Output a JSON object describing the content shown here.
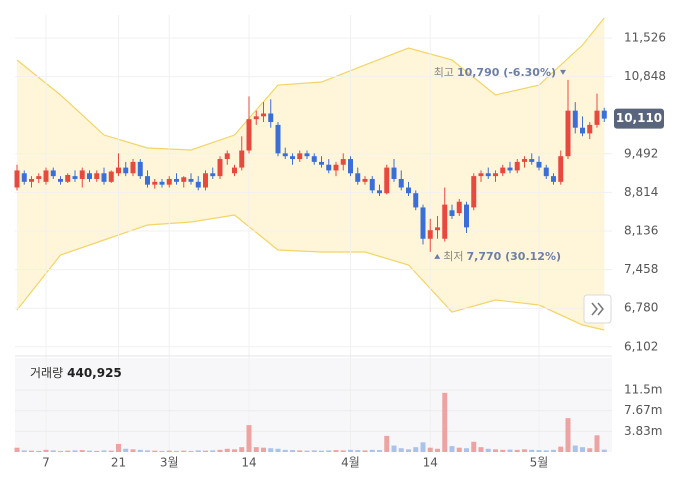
{
  "chart_data": {
    "type": "candlestick",
    "up_color": "#e8493f",
    "down_color": "#3a6fd8",
    "volume_up_color": "#eea3a3",
    "volume_down_color": "#a9c3ea",
    "band_fill": "#fff6d9",
    "band_color": "#f3d466",
    "ylim": [
      6046,
      11930
    ],
    "yticks": [
      {
        "value": 11526,
        "label": "11,526"
      },
      {
        "value": 10848,
        "label": "10,848"
      },
      {
        "value": 9492,
        "label": "9,492"
      },
      {
        "value": 8814,
        "label": "8,814"
      },
      {
        "value": 8136,
        "label": "8,136"
      },
      {
        "value": 7458,
        "label": "7,458"
      },
      {
        "value": 6780,
        "label": "6,780"
      },
      {
        "value": 6102,
        "label": "6,102"
      }
    ],
    "xticks": [
      {
        "value": 4,
        "label": "7"
      },
      {
        "value": 14,
        "label": "21"
      },
      {
        "value": 21,
        "label": "3월"
      },
      {
        "value": 32,
        "label": "14"
      },
      {
        "value": 46,
        "label": "4월"
      },
      {
        "value": 57,
        "label": "14"
      },
      {
        "value": 72,
        "label": "5월"
      }
    ],
    "candles": [
      [
        8900,
        9300,
        8850,
        9200
      ],
      [
        9150,
        9200,
        8950,
        9000
      ],
      [
        9000,
        9100,
        8900,
        9050
      ],
      [
        9050,
        9150,
        8980,
        9100
      ],
      [
        9000,
        9250,
        8950,
        9200
      ],
      [
        9200,
        9250,
        9050,
        9100
      ],
      [
        9050,
        9100,
        8950,
        9000
      ],
      [
        9000,
        9150,
        8980,
        9120
      ],
      [
        9100,
        9200,
        9000,
        9050
      ],
      [
        9050,
        9250,
        8900,
        9200
      ],
      [
        9150,
        9200,
        9000,
        9050
      ],
      [
        9050,
        9200,
        9000,
        9150
      ],
      [
        9150,
        9250,
        8950,
        9000
      ],
      [
        9000,
        9200,
        8980,
        9180
      ],
      [
        9150,
        9500,
        9100,
        9250
      ],
      [
        9250,
        9350,
        9100,
        9150
      ],
      [
        9150,
        9400,
        9100,
        9350
      ],
      [
        9350,
        9400,
        9050,
        9100
      ],
      [
        9100,
        9200,
        8900,
        8950
      ],
      [
        8950,
        9050,
        8880,
        9000
      ],
      [
        9000,
        9050,
        8900,
        8950
      ],
      [
        8950,
        9100,
        8900,
        9050
      ],
      [
        9050,
        9150,
        8950,
        9000
      ],
      [
        9000,
        9100,
        8900,
        9080
      ],
      [
        9050,
        9150,
        8950,
        9000
      ],
      [
        9000,
        9100,
        8850,
        8900
      ],
      [
        8900,
        9200,
        8850,
        9150
      ],
      [
        9150,
        9250,
        9050,
        9100
      ],
      [
        9100,
        9450,
        9050,
        9400
      ],
      [
        9400,
        9550,
        9300,
        9500
      ],
      [
        9150,
        9300,
        9100,
        9250
      ],
      [
        9250,
        9800,
        9200,
        9550
      ],
      [
        9550,
        10500,
        9500,
        10100
      ],
      [
        10100,
        10250,
        10000,
        10150
      ],
      [
        10150,
        10400,
        10050,
        10200
      ],
      [
        10200,
        10450,
        9950,
        10050
      ],
      [
        10000,
        10050,
        9450,
        9500
      ],
      [
        9500,
        9600,
        9400,
        9450
      ],
      [
        9450,
        9500,
        9300,
        9400
      ],
      [
        9400,
        9550,
        9350,
        9500
      ],
      [
        9500,
        9550,
        9400,
        9450
      ],
      [
        9450,
        9500,
        9300,
        9350
      ],
      [
        9350,
        9450,
        9250,
        9300
      ],
      [
        9300,
        9400,
        9150,
        9200
      ],
      [
        9200,
        9350,
        9100,
        9300
      ],
      [
        9300,
        9500,
        9200,
        9400
      ],
      [
        9400,
        9450,
        9100,
        9150
      ],
      [
        9150,
        9250,
        8950,
        9000
      ],
      [
        9000,
        9100,
        8950,
        9050
      ],
      [
        9050,
        9100,
        8800,
        8850
      ],
      [
        8850,
        8950,
        8750,
        8800
      ],
      [
        8800,
        9300,
        8780,
        9250
      ],
      [
        9250,
        9400,
        9000,
        9050
      ],
      [
        9050,
        9200,
        8850,
        8900
      ],
      [
        8900,
        9000,
        8750,
        8800
      ],
      [
        8800,
        8850,
        8500,
        8550
      ],
      [
        8550,
        8600,
        7900,
        8000
      ],
      [
        8000,
        8350,
        7770,
        8150
      ],
      [
        8150,
        8400,
        8000,
        8200
      ],
      [
        8000,
        8900,
        7950,
        8600
      ],
      [
        8500,
        8600,
        8350,
        8400
      ],
      [
        8450,
        8700,
        8400,
        8650
      ],
      [
        8600,
        8650,
        8100,
        8200
      ],
      [
        8550,
        9150,
        8500,
        9100
      ],
      [
        9100,
        9200,
        9000,
        9150
      ],
      [
        9150,
        9250,
        9050,
        9100
      ],
      [
        9100,
        9200,
        9000,
        9150
      ],
      [
        9150,
        9300,
        9100,
        9250
      ],
      [
        9250,
        9350,
        9150,
        9200
      ],
      [
        9200,
        9400,
        9150,
        9350
      ],
      [
        9350,
        9450,
        9250,
        9400
      ],
      [
        9400,
        9500,
        9300,
        9350
      ],
      [
        9350,
        9450,
        9200,
        9250
      ],
      [
        9250,
        9300,
        9050,
        9100
      ],
      [
        9100,
        9150,
        8950,
        9000
      ],
      [
        9000,
        9550,
        8950,
        9450
      ],
      [
        9450,
        10790,
        9400,
        10250
      ],
      [
        10250,
        10400,
        9850,
        9950
      ],
      [
        9950,
        10150,
        9800,
        9850
      ],
      [
        9850,
        10050,
        9750,
        10000
      ],
      [
        10000,
        10550,
        9950,
        10250
      ],
      [
        10250,
        10300,
        10050,
        10110
      ]
    ],
    "bands": {
      "x": [
        0,
        6,
        12,
        18,
        24,
        30,
        36,
        42,
        48,
        54,
        60,
        66,
        72,
        78,
        81
      ],
      "upper": [
        11140,
        10525,
        9822,
        9594,
        9559,
        9822,
        10700,
        10753,
        11052,
        11350,
        11140,
        10525,
        10700,
        11403,
        11877
      ],
      "lower": [
        6748,
        7714,
        7978,
        8241,
        8294,
        8417,
        7802,
        7767,
        7767,
        7539,
        6713,
        6924,
        6836,
        6485,
        6397
      ]
    },
    "last_price": {
      "value": 10110,
      "label": "10,110"
    },
    "high_annotation": {
      "label": "최고",
      "text": "10,790 (-6.30%)"
    },
    "low_annotation": {
      "label": "최저",
      "text": "7,770 (30.12%)"
    },
    "volume_title": "거래량",
    "volume_text": "440,925",
    "volume": [
      800000,
      300000,
      250000,
      200000,
      400000,
      300000,
      200000,
      250000,
      300000,
      350000,
      250000,
      200000,
      300000,
      250000,
      1500000,
      600000,
      500000,
      400000,
      300000,
      250000,
      200000,
      250000,
      200000,
      250000,
      200000,
      300000,
      250000,
      300000,
      400000,
      600000,
      500000,
      900000,
      5000000,
      900000,
      800000,
      700000,
      600000,
      400000,
      350000,
      300000,
      250000,
      300000,
      250000,
      300000,
      350000,
      300000,
      400000,
      350000,
      300000,
      400000,
      350000,
      3000000,
      1200000,
      700000,
      500000,
      900000,
      1800000,
      800000,
      600000,
      11000000,
      1100000,
      800000,
      700000,
      1900000,
      900000,
      600000,
      500000,
      400000,
      450000,
      400000,
      500000,
      400000,
      350000,
      300000,
      400000,
      1000000,
      6300000,
      1200000,
      900000,
      700000,
      3100000,
      440925
    ],
    "volume_ylim": [
      0,
      17100000
    ],
    "volume_yticks": [
      {
        "value": 11500000,
        "label": "11.5m"
      },
      {
        "value": 7670000,
        "label": "7.67m"
      },
      {
        "value": 3830000,
        "label": "3.83m"
      }
    ]
  }
}
